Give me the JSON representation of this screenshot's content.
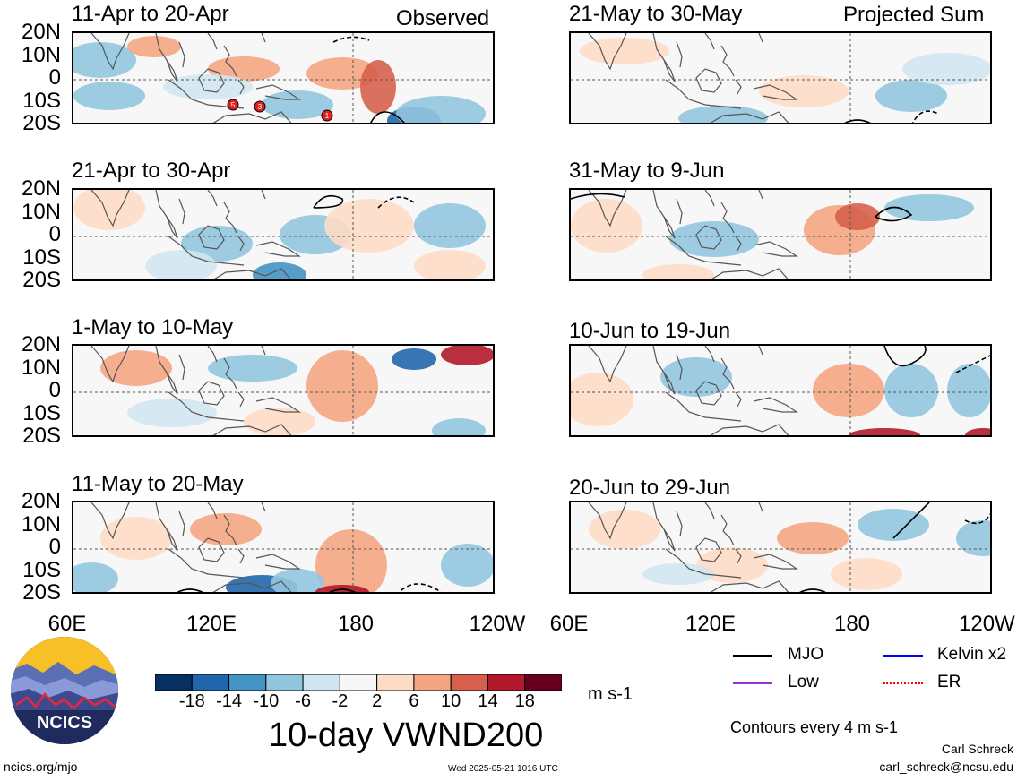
{
  "header": {
    "left_note": "Observed",
    "right_note": "Projected Sum"
  },
  "panels_left": [
    {
      "title": "11-Apr to 20-Apr"
    },
    {
      "title": "21-Apr to 30-Apr"
    },
    {
      "title": "1-May to 10-May"
    },
    {
      "title": "11-May to 20-May"
    }
  ],
  "panels_right": [
    {
      "title": "21-May to 30-May"
    },
    {
      "title": "31-May to 9-Jun"
    },
    {
      "title": "10-Jun to 19-Jun"
    },
    {
      "title": "20-Jun to 29-Jun"
    }
  ],
  "lat_labels": [
    "20N",
    "10N",
    "0",
    "10S",
    "20S"
  ],
  "lon_labels": [
    "60E",
    "120E",
    "180",
    "120W"
  ],
  "storm_markers": [
    "5",
    "3",
    "1"
  ],
  "colorbar": {
    "ticks": [
      "-18",
      "-14",
      "-10",
      "-6",
      "-2",
      "2",
      "6",
      "10",
      "14",
      "18"
    ],
    "colors": [
      "#053061",
      "#2166ac",
      "#4393c3",
      "#92c5de",
      "#d1e5f0",
      "#f7f7f7",
      "#fddbc7",
      "#f4a582",
      "#d6604d",
      "#b2182b",
      "#67001f"
    ],
    "units": "m s-1"
  },
  "main_title": "10-day VWND200",
  "legend": {
    "items": [
      {
        "label": "MJO",
        "color": "#000000"
      },
      {
        "label": "Kelvin x2",
        "color": "#0000ff"
      },
      {
        "label": "Low",
        "color": "#9932cc"
      },
      {
        "label": "ER",
        "color": "#ff0000"
      }
    ],
    "contour_note": "Contours every 4 m s-1"
  },
  "logo": {
    "text": "NCICS"
  },
  "footer": {
    "url": "ncics.org/mjo",
    "timestamp": "Wed 2025-05-21 1016 UTC",
    "author": "Carl Schreck",
    "email": "carl_schreck@ncsu.edu"
  }
}
